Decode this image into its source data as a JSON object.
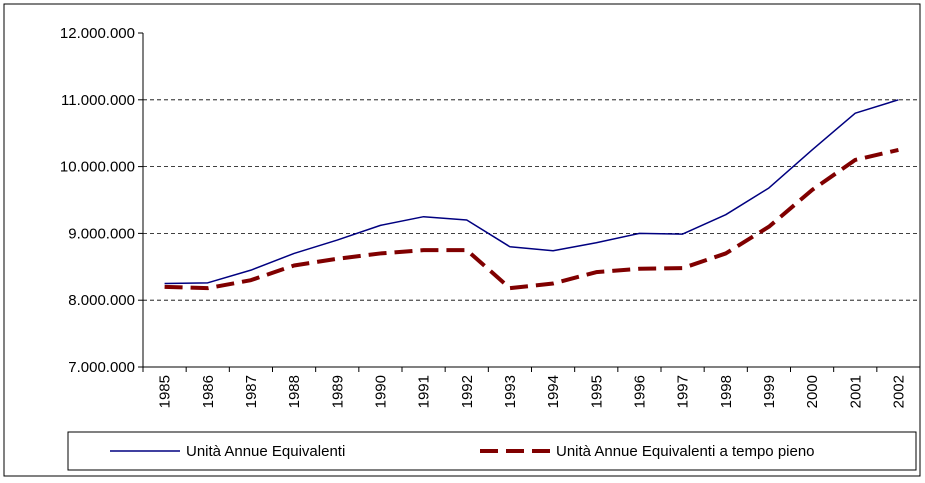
{
  "chart_data": {
    "type": "line",
    "categories": [
      "1985",
      "1986",
      "1987",
      "1988",
      "1989",
      "1990",
      "1991",
      "1992",
      "1993",
      "1994",
      "1995",
      "1996",
      "1997",
      "1998",
      "1999",
      "2000",
      "2001",
      "2002"
    ],
    "series": [
      {
        "name": "Unità Annue Equivalenti",
        "color": "#000080",
        "dash": false,
        "values": [
          8250000,
          8260000,
          8450000,
          8700000,
          8900000,
          9120000,
          9250000,
          9200000,
          8800000,
          8740000,
          8860000,
          9000000,
          8990000,
          9280000,
          9680000,
          10250000,
          10800000,
          11000000
        ]
      },
      {
        "name": "Unità Annue Equivalenti a tempo pieno",
        "color": "#800000",
        "dash": true,
        "values": [
          8200000,
          8180000,
          8300000,
          8520000,
          8620000,
          8700000,
          8750000,
          8750000,
          8180000,
          8250000,
          8420000,
          8470000,
          8480000,
          8700000,
          9100000,
          9650000,
          10100000,
          10250000
        ]
      }
    ],
    "ylim": [
      7000000,
      12000000
    ],
    "yticks": [
      {
        "value": 7000000,
        "label": "7.000.000"
      },
      {
        "value": 8000000,
        "label": "8.000.000"
      },
      {
        "value": 9000000,
        "label": "9.000.000"
      },
      {
        "value": 10000000,
        "label": "10.000.000"
      },
      {
        "value": 11000000,
        "label": "11.000.000"
      },
      {
        "value": 12000000,
        "label": "12.000.000"
      }
    ],
    "grid": true,
    "legend": "bottom"
  }
}
